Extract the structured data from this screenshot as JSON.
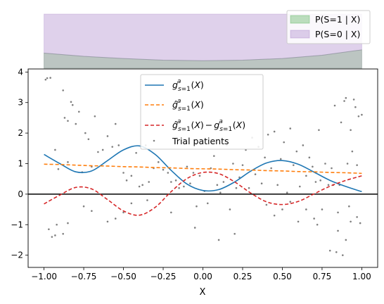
{
  "chart_data": [
    {
      "type": "area",
      "panel": "top",
      "x": [
        -1.0,
        -0.75,
        -0.5,
        -0.25,
        0.0,
        0.25,
        0.5,
        0.75,
        1.0
      ],
      "series": [
        {
          "name": "P(S=1 | X)",
          "color": "#2ca02c",
          "values": [
            0.28,
            0.22,
            0.18,
            0.15,
            0.14,
            0.15,
            0.18,
            0.24,
            0.34
          ]
        },
        {
          "name": "P(S=0 | X)",
          "color": "#9467bd",
          "values": [
            0.72,
            0.78,
            0.82,
            0.85,
            0.86,
            0.85,
            0.82,
            0.76,
            0.66
          ]
        }
      ],
      "ylim": [
        0,
        1
      ],
      "legend_position": "top-right",
      "stacked": true
    },
    {
      "type": "line",
      "panel": "main",
      "xlim": [
        -1.1,
        1.1
      ],
      "ylim": [
        -2.4,
        4.1
      ],
      "xlabel": "X",
      "xticks": [
        "−1.00",
        "−0.75",
        "−0.50",
        "−0.25",
        "0.00",
        "0.25",
        "0.50",
        "0.75",
        "1.00"
      ],
      "xtick_values": [
        -1.0,
        -0.75,
        -0.5,
        -0.25,
        0.0,
        0.25,
        0.5,
        0.75,
        1.0
      ],
      "yticks": [
        "−2",
        "−1",
        "0",
        "1",
        "2",
        "3",
        "4"
      ],
      "ytick_values": [
        -2,
        -1,
        0,
        1,
        2,
        3,
        4
      ],
      "x": [
        -1.0,
        -0.9,
        -0.8,
        -0.7,
        -0.6,
        -0.5,
        -0.4,
        -0.3,
        -0.2,
        -0.1,
        0.0,
        0.1,
        0.2,
        0.3,
        0.4,
        0.5,
        0.6,
        0.7,
        0.8,
        0.9,
        1.0
      ],
      "series": [
        {
          "name": "g",
          "legend": "g_s=1^a(X)",
          "color": "#1f77b4",
          "dash": "solid",
          "values": [
            1.3,
            1.0,
            0.73,
            0.76,
            1.1,
            1.45,
            1.58,
            1.3,
            0.78,
            0.33,
            0.12,
            0.15,
            0.4,
            0.75,
            1.02,
            1.1,
            0.98,
            0.72,
            0.45,
            0.25,
            0.08
          ]
        },
        {
          "name": "ghat",
          "legend": "ĝ_s=1^a(X)",
          "color": "#ff7f0e",
          "dash": "dashed",
          "values": [
            0.98,
            0.97,
            0.95,
            0.93,
            0.92,
            0.9,
            0.89,
            0.87,
            0.86,
            0.84,
            0.83,
            0.82,
            0.8,
            0.79,
            0.77,
            0.76,
            0.74,
            0.73,
            0.71,
            0.7,
            0.68
          ]
        },
        {
          "name": "diff",
          "legend": "ĝ_s=1^a(X) − g_s=1^a(X)",
          "color": "#d62728",
          "dash": "dashed",
          "values": [
            -0.32,
            -0.03,
            0.22,
            0.17,
            -0.18,
            -0.55,
            -0.69,
            -0.43,
            0.08,
            0.51,
            0.71,
            0.67,
            0.4,
            0.04,
            -0.25,
            -0.34,
            -0.24,
            0.01,
            0.26,
            0.45,
            0.6
          ]
        }
      ],
      "scatter": {
        "name": "Trial patients",
        "color": "#7f7f7f",
        "points": [
          [
            -0.99,
            3.75
          ],
          [
            -0.98,
            3.8
          ],
          [
            -0.96,
            3.81
          ],
          [
            -0.93,
            1.45
          ],
          [
            -0.91,
            0.82
          ],
          [
            -0.88,
            3.4
          ],
          [
            -0.87,
            2.5
          ],
          [
            -0.85,
            1.05
          ],
          [
            -0.83,
            3.02
          ],
          [
            -0.82,
            2.92
          ],
          [
            -0.8,
            2.3
          ],
          [
            -0.78,
            2.7
          ],
          [
            -0.76,
            0.72
          ],
          [
            -0.74,
            2.0
          ],
          [
            -0.72,
            1.8
          ],
          [
            -0.7,
            0.9
          ],
          [
            -0.68,
            2.55
          ],
          [
            -0.66,
            1.38
          ],
          [
            -0.63,
            1.45
          ],
          [
            -0.6,
            1.9
          ],
          [
            -0.57,
            1.55
          ],
          [
            -0.55,
            2.3
          ],
          [
            -0.53,
            1.6
          ],
          [
            -0.5,
            0.7
          ],
          [
            -0.48,
            0.45
          ],
          [
            -0.45,
            0.6
          ],
          [
            -0.42,
            1.35
          ],
          [
            -0.4,
            0.25
          ],
          [
            -0.38,
            0.3
          ],
          [
            -0.36,
            1.6
          ],
          [
            -0.34,
            0.4
          ],
          [
            -0.31,
            0.85
          ],
          [
            -0.28,
            1.05
          ],
          [
            -0.25,
            0.8
          ],
          [
            -0.22,
            0.7
          ],
          [
            -0.2,
            0.4
          ],
          [
            -0.17,
            0.45
          ],
          [
            -0.15,
            0.2
          ],
          [
            -0.12,
            0.25
          ],
          [
            -0.1,
            0.9
          ],
          [
            -0.08,
            0.35
          ],
          [
            -0.06,
            0.7
          ],
          [
            -0.04,
            -0.4
          ],
          [
            -0.02,
            0.6
          ],
          [
            0.01,
            0.1
          ],
          [
            0.03,
            -0.3
          ],
          [
            0.05,
            0.85
          ],
          [
            0.07,
            1.25
          ],
          [
            0.09,
            0.3
          ],
          [
            0.11,
            0.05
          ],
          [
            0.13,
            0.4
          ],
          [
            0.15,
            1.6
          ],
          [
            0.17,
            -0.5
          ],
          [
            0.19,
            1.0
          ],
          [
            0.21,
            0.2
          ],
          [
            0.23,
            0.55
          ],
          [
            0.25,
            0.95
          ],
          [
            0.27,
            1.45
          ],
          [
            0.29,
            0.2
          ],
          [
            0.31,
            1.85
          ],
          [
            0.33,
            0.65
          ],
          [
            0.35,
            1.55
          ],
          [
            0.37,
            0.35
          ],
          [
            0.39,
            1.2
          ],
          [
            0.41,
            1.95
          ],
          [
            0.43,
            0.85
          ],
          [
            0.45,
            2.05
          ],
          [
            0.47,
            0.3
          ],
          [
            0.49,
            1.15
          ],
          [
            0.51,
            1.7
          ],
          [
            0.53,
            0.05
          ],
          [
            0.55,
            2.15
          ],
          [
            0.57,
            0.95
          ],
          [
            0.59,
            1.4
          ],
          [
            0.61,
            0.25
          ],
          [
            0.63,
            1.6
          ],
          [
            0.65,
            0.6
          ],
          [
            0.67,
            1.2
          ],
          [
            0.69,
            0.9
          ],
          [
            0.71,
            0.4
          ],
          [
            0.73,
            2.1
          ],
          [
            0.74,
            0.45
          ],
          [
            0.75,
            -0.5
          ],
          [
            0.77,
            1.0
          ],
          [
            0.79,
            0.3
          ],
          [
            0.8,
            -1.85
          ],
          [
            0.81,
            0.85
          ],
          [
            0.82,
            0.3
          ],
          [
            0.83,
            2.9
          ],
          [
            0.84,
            -1.9
          ],
          [
            0.85,
            -0.6
          ],
          [
            0.86,
            0.3
          ],
          [
            0.87,
            2.35
          ],
          [
            0.88,
            -2.0
          ],
          [
            0.89,
            3.05
          ],
          [
            0.9,
            3.15
          ],
          [
            0.91,
            1.0
          ],
          [
            0.92,
            -0.4
          ],
          [
            0.93,
            2.1
          ],
          [
            0.94,
            1.4
          ],
          [
            0.95,
            3.1
          ],
          [
            0.96,
            2.85
          ],
          [
            0.97,
            0.95
          ],
          [
            0.98,
            2.55
          ],
          [
            0.99,
            -0.95
          ],
          [
            1.0,
            2.6
          ],
          [
            -0.6,
            -0.9
          ],
          [
            -0.55,
            -0.8
          ],
          [
            -0.5,
            -0.6
          ],
          [
            -0.45,
            -0.3
          ],
          [
            -0.7,
            -0.55
          ],
          [
            -0.75,
            -0.4
          ],
          [
            -0.85,
            -0.95
          ],
          [
            -0.88,
            -1.3
          ],
          [
            -0.92,
            -1.0
          ],
          [
            -0.95,
            -1.4
          ],
          [
            -0.97,
            -1.15
          ],
          [
            -0.93,
            -1.35
          ],
          [
            0.4,
            -0.35
          ],
          [
            0.45,
            -0.7
          ],
          [
            0.5,
            -0.5
          ],
          [
            0.55,
            -0.25
          ],
          [
            0.6,
            -0.9
          ],
          [
            0.65,
            -0.5
          ],
          [
            0.7,
            -0.8
          ],
          [
            0.72,
            -1.0
          ],
          [
            0.85,
            -1.2
          ],
          [
            0.9,
            -1.5
          ],
          [
            0.93,
            -0.9
          ],
          [
            0.97,
            -0.75
          ],
          [
            -0.05,
            -1.1
          ],
          [
            0.1,
            -1.5
          ],
          [
            0.2,
            -1.3
          ],
          [
            -0.2,
            -0.6
          ],
          [
            -0.35,
            -0.2
          ],
          [
            -0.85,
            2.4
          ]
        ]
      },
      "hline_y": 0,
      "legend_position": "upper-center"
    }
  ]
}
